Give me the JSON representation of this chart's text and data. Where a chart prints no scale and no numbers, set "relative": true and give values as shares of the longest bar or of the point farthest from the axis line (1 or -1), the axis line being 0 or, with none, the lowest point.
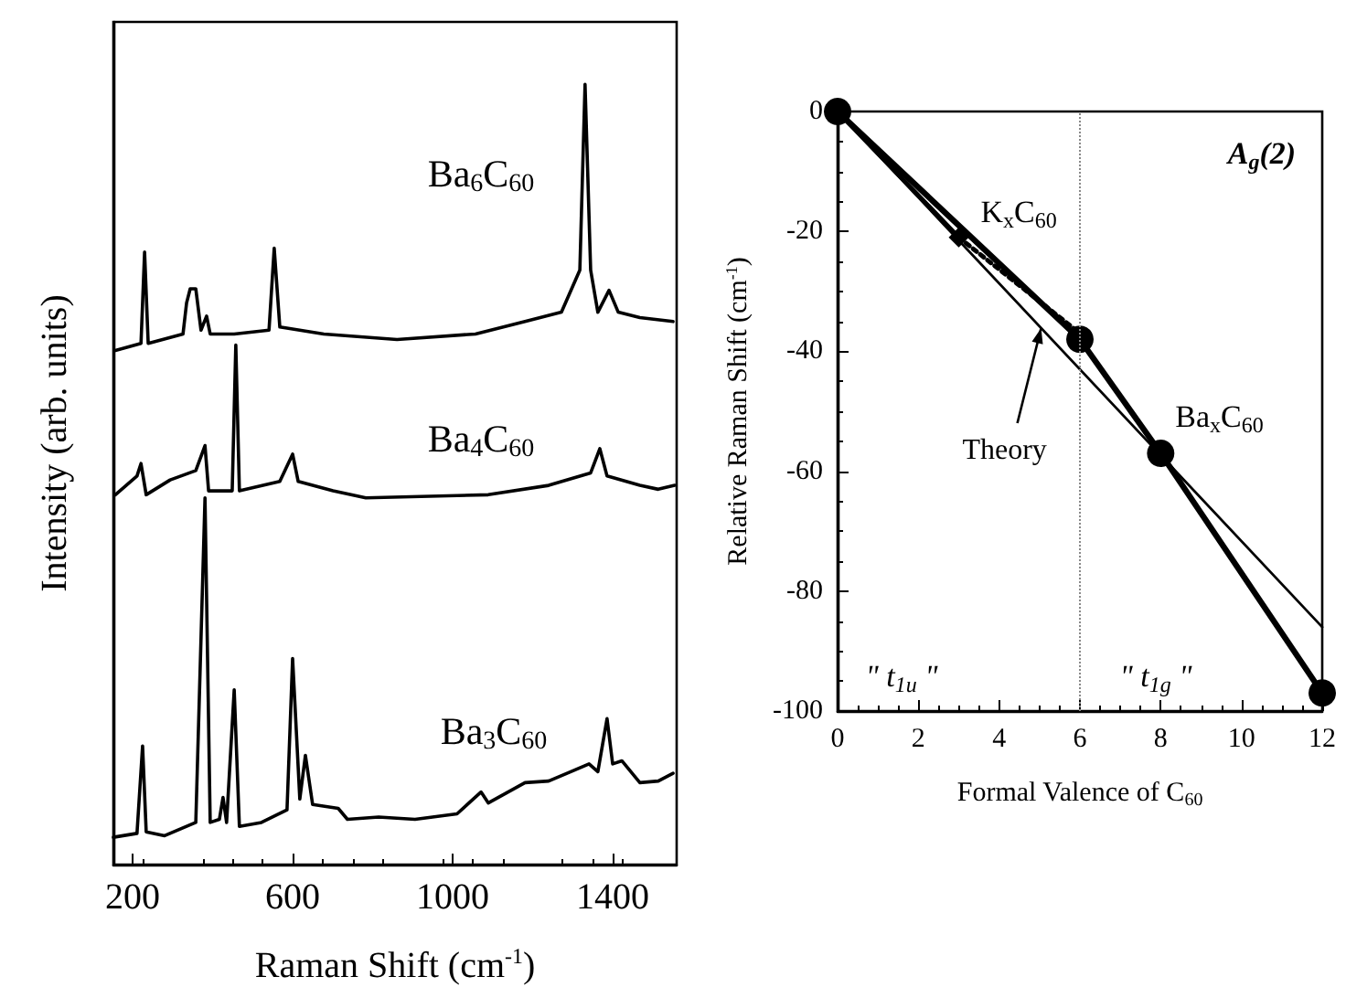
{
  "chart_data": [
    {
      "type": "line",
      "xlabel": "Raman Shift (cm$^{-1}$)",
      "ylabel": "Intensity (arb. units)",
      "xlim": [
        152,
        1560
      ],
      "xticks": [
        200,
        600,
        1000,
        1400
      ],
      "relative": true,
      "tick_labels": "x",
      "grid": false,
      "legend": false,
      "marker": "none",
      "series": [
        {
          "name": "Ba$_{6}$C$_{60}$",
          "color": "#000000",
          "x": [
            157,
            221,
            230,
            239,
            326,
            335,
            344,
            358,
            371,
            385,
            394,
            454,
            541,
            554,
            568,
            678,
            861,
            1057,
            1181,
            1272,
            1318,
            1331,
            1345,
            1363,
            1391,
            1414,
            1468,
            1551
          ],
          "values": [
            0.659,
            0.668,
            0.785,
            0.668,
            0.68,
            0.72,
            0.738,
            0.738,
            0.685,
            0.703,
            0.68,
            0.68,
            0.685,
            0.79,
            0.689,
            0.68,
            0.673,
            0.68,
            0.696,
            0.708,
            0.762,
            1.0,
            0.762,
            0.708,
            0.736,
            0.708,
            0.701,
            0.696
          ]
        },
        {
          "name": "Ba$_{4}$C$_{60}$",
          "color": "#000000",
          "x": [
            157,
            211,
            221,
            234,
            294,
            358,
            381,
            390,
            449,
            458,
            467,
            568,
            600,
            614,
            701,
            783,
            1089,
            1240,
            1345,
            1368,
            1386,
            1468,
            1514,
            1555
          ],
          "values": [
            0.474,
            0.498,
            0.514,
            0.474,
            0.493,
            0.505,
            0.537,
            0.479,
            0.479,
            0.666,
            0.479,
            0.491,
            0.526,
            0.491,
            0.479,
            0.47,
            0.474,
            0.486,
            0.502,
            0.533,
            0.498,
            0.486,
            0.481,
            0.486
          ]
        },
        {
          "name": "Ba$_{3}$C$_{60}$",
          "color": "#000000",
          "x": [
            152,
            211,
            225,
            234,
            280,
            358,
            381,
            394,
            417,
            426,
            435,
            454,
            467,
            522,
            586,
            600,
            618,
            632,
            650,
            714,
            737,
            815,
            906,
            1011,
            1071,
            1089,
            1181,
            1240,
            1286,
            1341,
            1363,
            1386,
            1400,
            1423,
            1468,
            1514,
            1551
          ],
          "values": [
            0.035,
            0.04,
            0.152,
            0.042,
            0.037,
            0.054,
            0.47,
            0.054,
            0.058,
            0.086,
            0.054,
            0.224,
            0.049,
            0.054,
            0.07,
            0.264,
            0.084,
            0.14,
            0.077,
            0.072,
            0.058,
            0.061,
            0.058,
            0.065,
            0.093,
            0.079,
            0.105,
            0.107,
            0.117,
            0.129,
            0.119,
            0.187,
            0.129,
            0.133,
            0.105,
            0.107,
            0.117
          ]
        }
      ]
    },
    {
      "type": "line",
      "xlabel": "Formal Valence of C$_{60}$",
      "ylabel": "Relative Raman Shift (cm$^{-1}$)",
      "xlim": [
        0,
        12
      ],
      "ylim": [
        -100,
        0
      ],
      "xticks": [
        0,
        2,
        4,
        6,
        8,
        10,
        12
      ],
      "yticks": [
        -100,
        -80,
        -60,
        -40,
        -20,
        0
      ],
      "grid": false,
      "legend": false,
      "ref_lines": [
        {
          "axis": "x",
          "value": 6,
          "color": "#888888",
          "line_style": "dotted"
        }
      ],
      "annotations": [
        "A$_{g}$(2)",
        "\" t$_{1u}$ \"",
        "\" t$_{1g}$ \""
      ],
      "series": [
        {
          "name": "Theory",
          "color": "#000000",
          "line_style": "solid",
          "x": [
            0,
            12
          ],
          "values": [
            0,
            -86
          ]
        },
        {
          "name": "K$_{x}$C$_{60}$",
          "color": "#000000",
          "marker": "diamond",
          "line_style": "solid",
          "x": [
            0,
            3
          ],
          "values": [
            0,
            -21
          ]
        },
        {
          "color": "#000000",
          "marker": "none",
          "line_style": "dotted",
          "x": [
            3,
            6
          ],
          "values": [
            -21,
            -37
          ]
        },
        {
          "name": "Ba$_{x}$C$_{60}$",
          "color": "#000000",
          "marker": "circle",
          "line_style": "solid",
          "x": [
            0,
            6,
            8,
            12
          ],
          "values": [
            0,
            -38,
            -57,
            -97
          ]
        }
      ]
    }
  ]
}
